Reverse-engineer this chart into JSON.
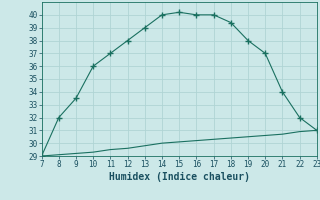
{
  "xlabel": "Humidex (Indice chaleur)",
  "bg_color": "#cce8e8",
  "grid_color": "#b0d4d4",
  "line_color": "#1a7060",
  "marker_color": "#1a7060",
  "x_upper": [
    7,
    8,
    9,
    10,
    11,
    12,
    13,
    14,
    15,
    16,
    17,
    18,
    19,
    20,
    21,
    22,
    23
  ],
  "y_upper": [
    29,
    32,
    33.5,
    36,
    37,
    38,
    39,
    40,
    40.2,
    40,
    40,
    39.4,
    38,
    37,
    34,
    32,
    31
  ],
  "x_lower": [
    7,
    8,
    9,
    10,
    11,
    12,
    13,
    14,
    15,
    16,
    17,
    18,
    19,
    20,
    21,
    22,
    23
  ],
  "y_lower": [
    29,
    29.1,
    29.2,
    29.3,
    29.5,
    29.6,
    29.8,
    30.0,
    30.1,
    30.2,
    30.3,
    30.4,
    30.5,
    30.6,
    30.7,
    30.9,
    31
  ],
  "xlim": [
    7,
    23
  ],
  "ylim": [
    29,
    41
  ],
  "xticks": [
    7,
    8,
    9,
    10,
    11,
    12,
    13,
    14,
    15,
    16,
    17,
    18,
    19,
    20,
    21,
    22,
    23
  ],
  "yticks": [
    29,
    30,
    31,
    32,
    33,
    34,
    35,
    36,
    37,
    38,
    39,
    40
  ],
  "tick_color": "#1a5060",
  "xlabel_color": "#1a5060",
  "tick_fontsize": 5.5,
  "xlabel_fontsize": 7.0
}
